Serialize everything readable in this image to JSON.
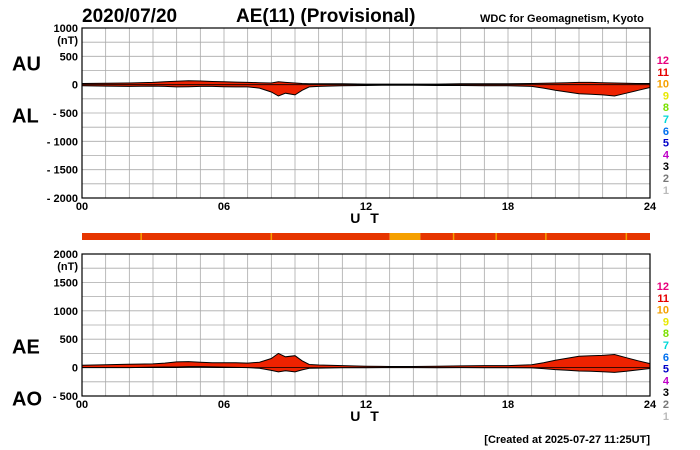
{
  "header": {
    "date": "2020/07/20",
    "title": "AE(11) (Provisional)",
    "source": "WDC for Geomagnetism, Kyoto"
  },
  "footer": {
    "created": "[Created at 2025-07-27 11:25UT]"
  },
  "quality_legend": [
    {
      "label": "12",
      "color": "#e8007c"
    },
    {
      "label": "11",
      "color": "#e60000"
    },
    {
      "label": "10",
      "color": "#f5a000"
    },
    {
      "label": "9",
      "color": "#e8e800"
    },
    {
      "label": "8",
      "color": "#7ae000"
    },
    {
      "label": "7",
      "color": "#00d8d8"
    },
    {
      "label": "6",
      "color": "#0070f0"
    },
    {
      "label": "5",
      "color": "#0000c8"
    },
    {
      "label": "4",
      "color": "#c000c8"
    },
    {
      "label": "3",
      "color": "#000000"
    },
    {
      "label": "2",
      "color": "#777777"
    },
    {
      "label": "1",
      "color": "#bbbbbb"
    }
  ],
  "chart_data": [
    {
      "type": "area",
      "panel": "AU/AL",
      "label_top": "AU",
      "label_bottom": "AL",
      "unit": "(nT)",
      "xlabel": "U T",
      "xlim": [
        0,
        24
      ],
      "ylim": [
        -2000,
        1000
      ],
      "yticks": [
        "1000",
        "500",
        "0",
        "- 500",
        "- 1000",
        "- 1500",
        "- 2000"
      ],
      "ytick_values": [
        1000,
        500,
        0,
        -500,
        -1000,
        -1500,
        -2000
      ],
      "xticks": [
        "00",
        "06",
        "12",
        "18",
        "24"
      ],
      "xtick_values": [
        0,
        6,
        12,
        18,
        24
      ],
      "fill_color": "#ee2200",
      "x": [
        0,
        1,
        2,
        3,
        3.5,
        4,
        4.5,
        5,
        5.5,
        6,
        6.5,
        7,
        7.5,
        8,
        8.3,
        8.6,
        9,
        9.3,
        9.6,
        10,
        11,
        12,
        13,
        14,
        15,
        16,
        17,
        18,
        19,
        19.5,
        20,
        20.5,
        21,
        21.5,
        22,
        22.5,
        23,
        23.5,
        24
      ],
      "series": [
        {
          "name": "AU",
          "values": [
            20,
            25,
            30,
            40,
            50,
            60,
            70,
            65,
            55,
            50,
            45,
            40,
            35,
            30,
            50,
            40,
            30,
            20,
            15,
            15,
            15,
            10,
            10,
            10,
            10,
            15,
            15,
            15,
            20,
            25,
            30,
            35,
            40,
            40,
            35,
            30,
            25,
            20,
            20
          ]
        },
        {
          "name": "AL",
          "values": [
            -20,
            -25,
            -30,
            -25,
            -30,
            -40,
            -35,
            -30,
            -30,
            -35,
            -40,
            -40,
            -60,
            -130,
            -200,
            -150,
            -180,
            -100,
            -40,
            -30,
            -20,
            -15,
            -10,
            -10,
            -15,
            -15,
            -20,
            -20,
            -30,
            -60,
            -100,
            -130,
            -160,
            -170,
            -180,
            -200,
            -150,
            -100,
            -50
          ]
        }
      ]
    },
    {
      "type": "area",
      "panel": "AE/AO",
      "label_top": "AE",
      "label_bottom": "AO",
      "unit": "(nT)",
      "xlabel": "U T",
      "xlim": [
        0,
        24
      ],
      "ylim": [
        -500,
        2000
      ],
      "yticks": [
        "2000",
        "1500",
        "1000",
        "500",
        "0",
        "- 500"
      ],
      "ytick_values": [
        2000,
        1500,
        1000,
        500,
        0,
        -500
      ],
      "xticks": [
        "00",
        "06",
        "12",
        "18",
        "24"
      ],
      "xtick_values": [
        0,
        6,
        12,
        18,
        24
      ],
      "fill_color": "#ee2200",
      "x": [
        0,
        1,
        2,
        3,
        3.5,
        4,
        4.5,
        5,
        5.5,
        6,
        6.5,
        7,
        7.5,
        8,
        8.3,
        8.6,
        9,
        9.3,
        9.6,
        10,
        11,
        12,
        13,
        14,
        15,
        16,
        17,
        18,
        19,
        19.5,
        20,
        20.5,
        21,
        21.5,
        22,
        22.5,
        23,
        23.5,
        24
      ],
      "series": [
        {
          "name": "AE",
          "values": [
            40,
            50,
            60,
            65,
            80,
            100,
            105,
            95,
            85,
            85,
            85,
            80,
            95,
            160,
            250,
            190,
            210,
            120,
            55,
            45,
            35,
            25,
            20,
            20,
            25,
            30,
            35,
            35,
            50,
            85,
            130,
            165,
            200,
            210,
            215,
            230,
            175,
            120,
            70
          ]
        },
        {
          "name": "AO",
          "values": [
            0,
            0,
            0,
            8,
            10,
            10,
            18,
            18,
            13,
            8,
            3,
            0,
            -13,
            -50,
            -75,
            -55,
            -75,
            -40,
            -13,
            -8,
            -3,
            -3,
            0,
            0,
            -3,
            0,
            -3,
            -3,
            -5,
            -18,
            -35,
            -48,
            -60,
            -65,
            -73,
            -85,
            -63,
            -40,
            -15
          ]
        }
      ]
    }
  ],
  "quality_bar": {
    "xlim": [
      0,
      24
    ],
    "segments": [
      {
        "start": 0,
        "end": 13.0,
        "color": "#e63500"
      },
      {
        "start": 13.0,
        "end": 14.3,
        "color": "#f5a000"
      },
      {
        "start": 14.3,
        "end": 24,
        "color": "#e63500"
      }
    ],
    "ticks": [
      2.5,
      8.0,
      15.7,
      17.5,
      19.6,
      23.0
    ]
  }
}
